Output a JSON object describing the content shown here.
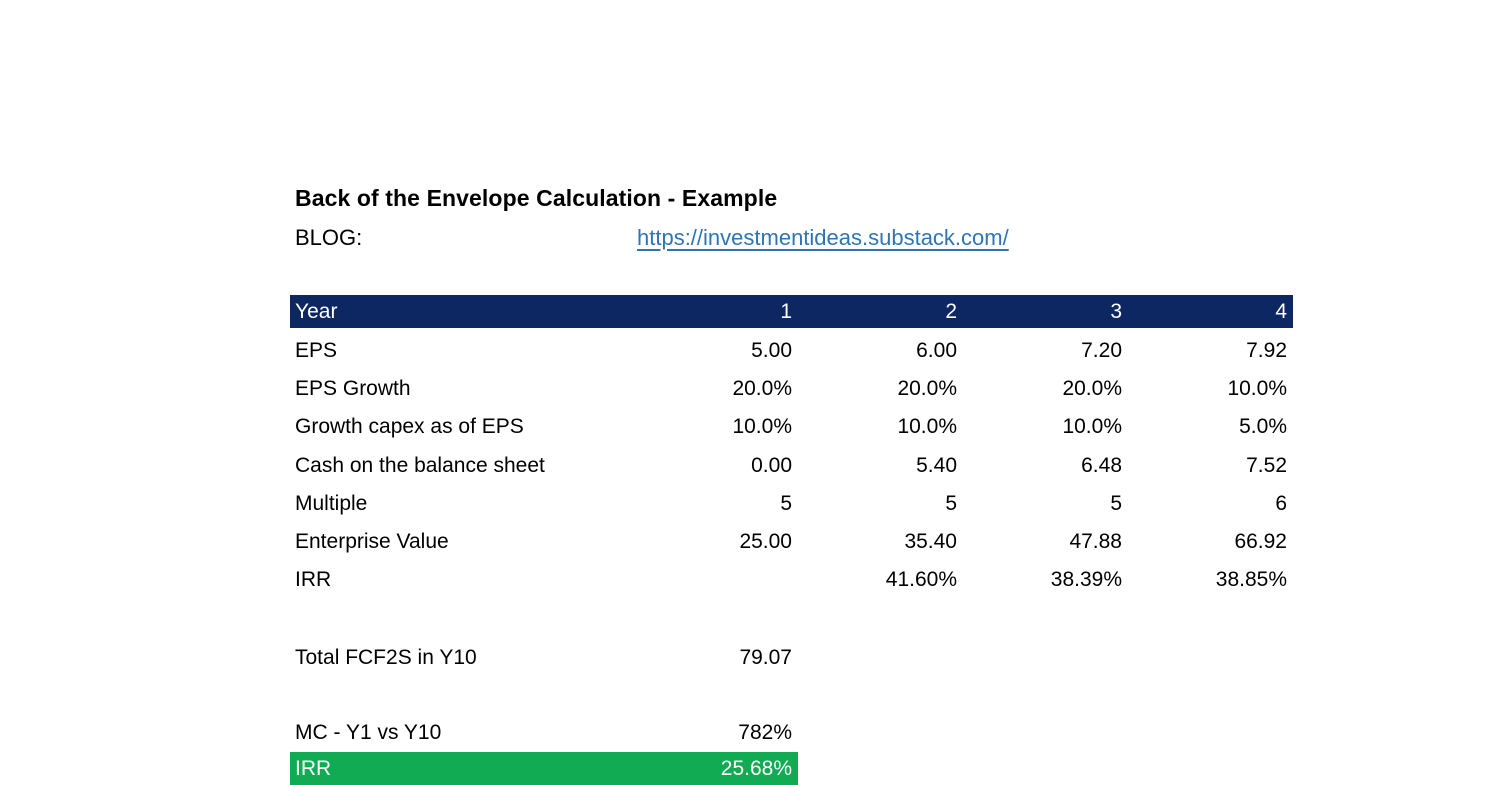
{
  "document": {
    "title": "Back of the Envelope Calculation - Example",
    "blog_label": "BLOG:",
    "blog_url": "https://investmentideas.substack.com/"
  },
  "table": {
    "header": {
      "label": "Year",
      "columns": [
        "1",
        "2",
        "3",
        "4"
      ]
    },
    "rows": [
      {
        "label": "EPS",
        "values": [
          "5.00",
          "6.00",
          "7.20",
          "7.92"
        ]
      },
      {
        "label": "EPS Growth",
        "values": [
          "20.0%",
          "20.0%",
          "20.0%",
          "10.0%"
        ]
      },
      {
        "label": "Growth capex as of EPS",
        "values": [
          "10.0%",
          "10.0%",
          "10.0%",
          "5.0%"
        ]
      },
      {
        "label": "Cash on the balance sheet",
        "values": [
          "0.00",
          "5.40",
          "6.48",
          "7.52"
        ]
      },
      {
        "label": "Multiple",
        "values": [
          "5",
          "5",
          "5",
          "6"
        ]
      },
      {
        "label": "Enterprise Value",
        "values": [
          "25.00",
          "35.40",
          "47.88",
          "66.92"
        ]
      },
      {
        "label": "IRR",
        "values": [
          "",
          "41.60%",
          "38.39%",
          "38.85%"
        ]
      }
    ]
  },
  "summary": {
    "total_fcf2s": {
      "label": "Total FCF2S in Y10",
      "value": "79.07"
    },
    "mc": {
      "label": "MC - Y1 vs Y10",
      "value": "782%"
    },
    "irr": {
      "label": "IRR",
      "value": "25.68%"
    }
  },
  "colors": {
    "header_bg": "#0d2763",
    "highlight_bg": "#10ab53",
    "link": "#2e75b6"
  }
}
